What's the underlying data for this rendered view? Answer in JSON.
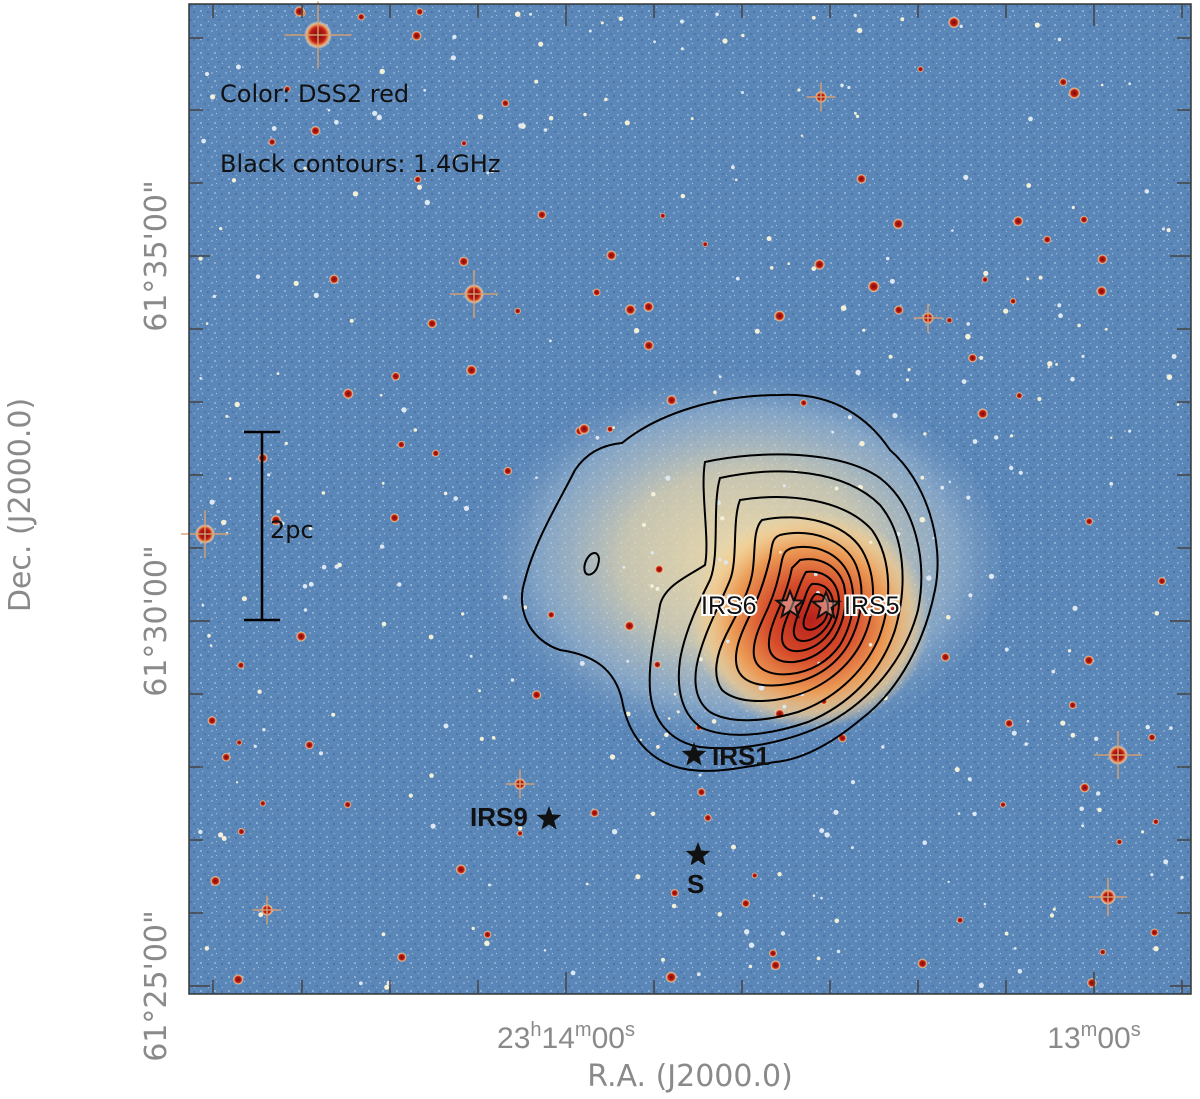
{
  "legend": {
    "color_note": "Color: DSS2 red",
    "contour_note": "Black contours: 1.4GHz"
  },
  "scale_bar": {
    "label": "2pc"
  },
  "axes": {
    "x_label": "R.A. (J2000.0)",
    "y_label": "Dec. (J2000.0)",
    "x_ticks": [
      {
        "h": "23",
        "m": "14",
        "s": "00",
        "show_hours": true
      },
      {
        "h": "",
        "m": "13",
        "s": "00",
        "show_hours": false
      }
    ],
    "y_ticks": [
      "61°35'00\"",
      "61°30'00\"",
      "61°25'00\""
    ]
  },
  "sources": [
    {
      "id": "IRS6",
      "label": "IRS6",
      "marker": "open-star"
    },
    {
      "id": "IRS5",
      "label": "IRS5",
      "marker": "open-star"
    },
    {
      "id": "IRS1",
      "label": "IRS1",
      "marker": "filled-star"
    },
    {
      "id": "IRS9",
      "label": "IRS9",
      "marker": "filled-star"
    },
    {
      "id": "S",
      "label": "S",
      "marker": "filled-star"
    }
  ],
  "colors": {
    "sky_background": "#5a86b8",
    "nebula": "#f2d29a",
    "core": "#c62b1d",
    "contour": "#000000"
  }
}
